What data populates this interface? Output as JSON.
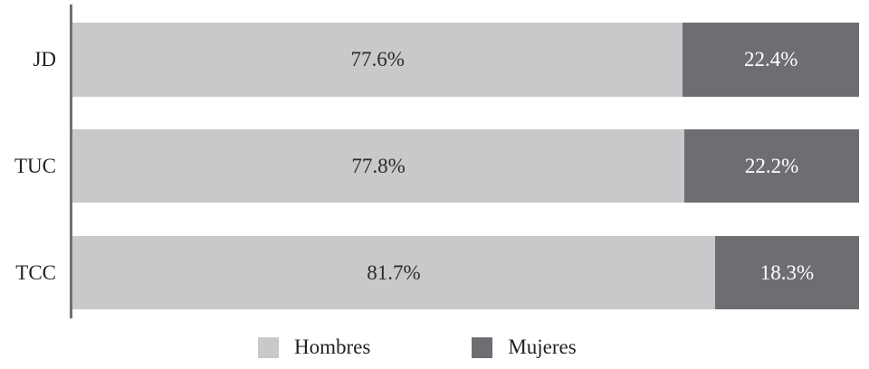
{
  "chart_data": {
    "type": "bar",
    "orientation": "horizontal",
    "stacked": true,
    "categories": [
      "JD",
      "TUC",
      "TCC"
    ],
    "series": [
      {
        "name": "Hombres",
        "color": "#c8c9cb",
        "values": [
          77.6,
          77.8,
          81.7
        ]
      },
      {
        "name": "Mujeres",
        "color": "#6d6e71",
        "values": [
          22.4,
          22.2,
          18.3
        ]
      }
    ],
    "value_suffix": "%",
    "xlim": [
      0,
      100
    ],
    "grid": false,
    "legend_position": "bottom"
  },
  "rows": [
    {
      "label": "JD",
      "segments": [
        {
          "text": "77.6%",
          "pct": 77.6,
          "color": "#c8c9cb",
          "text_color": "#2b2b2b"
        },
        {
          "text": "22.4%",
          "pct": 22.4,
          "color": "#6d6e71",
          "text_color": "#ffffff"
        }
      ]
    },
    {
      "label": "TUC",
      "segments": [
        {
          "text": "77.8%",
          "pct": 77.8,
          "color": "#c8c9cb",
          "text_color": "#2b2b2b"
        },
        {
          "text": "22.2%",
          "pct": 22.2,
          "color": "#6d6e71",
          "text_color": "#ffffff"
        }
      ]
    },
    {
      "label": "TCC",
      "segments": [
        {
          "text": "81.7%",
          "pct": 81.7,
          "color": "#c8c9cb",
          "text_color": "#2b2b2b"
        },
        {
          "text": "18.3%",
          "pct": 18.3,
          "color": "#6d6e71",
          "text_color": "#ffffff"
        }
      ]
    }
  ],
  "legend": {
    "items": [
      {
        "label": "Hombres",
        "color": "#c8c9cb"
      },
      {
        "label": "Mujeres",
        "color": "#6d6e71"
      }
    ]
  },
  "colors": {
    "background": "#ffffff",
    "axis_line": "#6f7073",
    "text_dark": "#231f20"
  }
}
